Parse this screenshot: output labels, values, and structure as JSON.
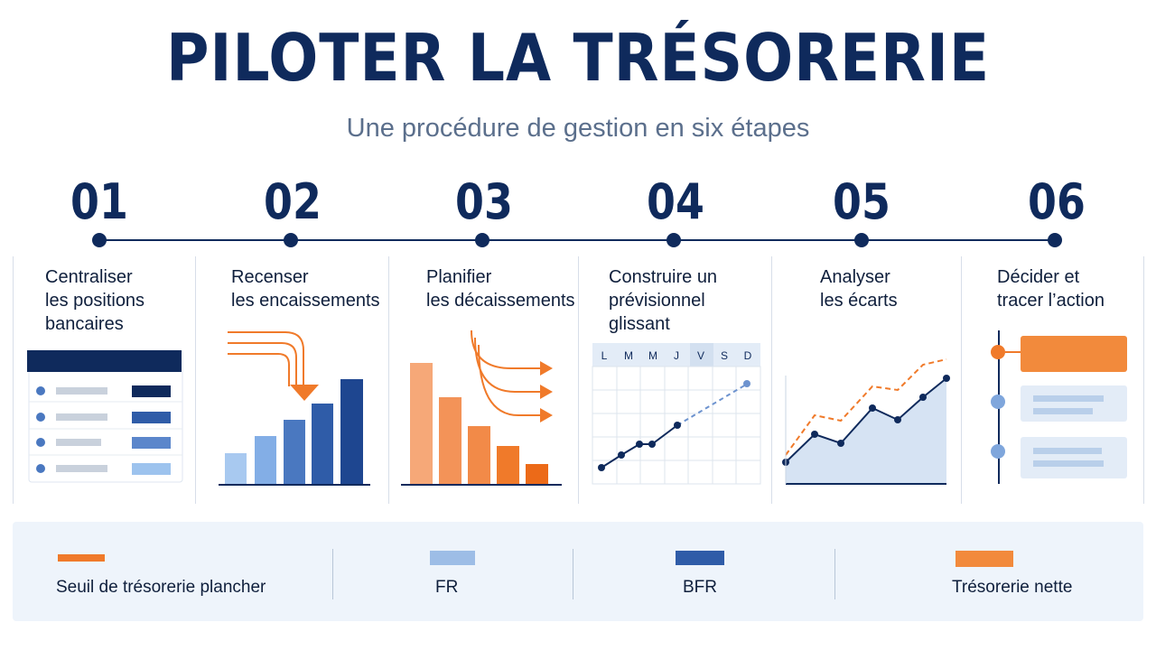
{
  "header": {
    "title": "PILOTER LA TRÉSORERIE",
    "subtitle": "Une procédure de gestion en six étapes"
  },
  "steps": [
    {
      "number": "01",
      "title": "Centraliser\nles positions\nbancaires"
    },
    {
      "number": "02",
      "title": "Recenser\nles encaissements"
    },
    {
      "number": "03",
      "title": "Planifier\nles décaissements"
    },
    {
      "number": "04",
      "title": "Construire un\nprévisionnel glissant"
    },
    {
      "number": "05",
      "title": "Analyser\nles écarts"
    },
    {
      "number": "06",
      "title": "Décider et\ntracer l’action"
    }
  ],
  "calendar_days": [
    "L",
    "M",
    "M",
    "J",
    "V",
    "S",
    "D"
  ],
  "legend": [
    {
      "label": "Seuil de trésorerie plancher",
      "color": "#f07a2a",
      "shape": "line"
    },
    {
      "label": "FR",
      "color": "#9dbde6",
      "shape": "bar"
    },
    {
      "label": "BFR",
      "color": "#2f5ca8",
      "shape": "bar"
    },
    {
      "label": "Trésorerie nette",
      "color": "#f28a3c",
      "shape": "bar"
    }
  ],
  "colors": {
    "navy": "#0f2a5c",
    "orange": "#f07a2a",
    "light_blue": "#9dbde6",
    "mid_blue": "#2f5ca8"
  }
}
